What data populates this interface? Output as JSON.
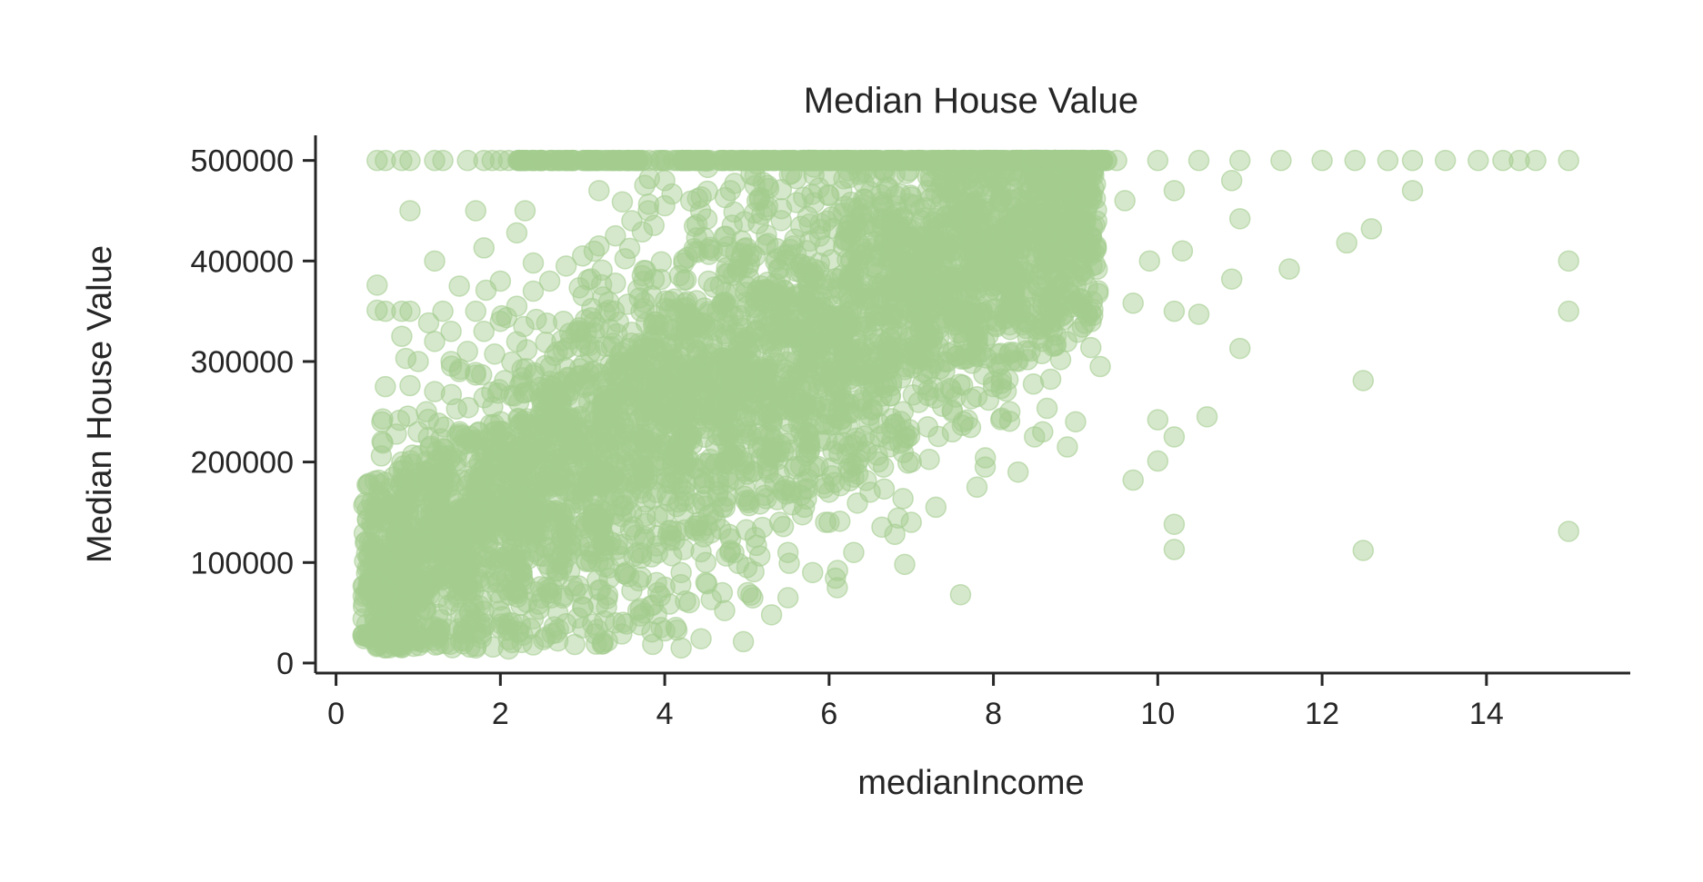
{
  "chart_data": {
    "type": "scatter",
    "title": "Median House Value",
    "xlabel": "medianIncome",
    "ylabel": "Median House Value",
    "xlim": [
      -0.25,
      15.75
    ],
    "ylim": [
      -10000,
      525000
    ],
    "xticks": [
      0,
      2,
      4,
      6,
      8,
      10,
      12,
      14
    ],
    "yticks": [
      0,
      100000,
      200000,
      300000,
      400000,
      500000
    ],
    "xtick_labels": [
      "0",
      "2",
      "4",
      "6",
      "8",
      "10",
      "12",
      "14"
    ],
    "ytick_labels": [
      "0",
      "100000",
      "200000",
      "300000",
      "400000",
      "500000"
    ],
    "grid": false,
    "point_color": "#a3cd8f",
    "point_alpha": 0.45,
    "series": [
      {
        "points": [
          [
            0.5,
            500001
          ],
          [
            0.6,
            500001
          ],
          [
            0.8,
            500001
          ],
          [
            0.9,
            500001
          ],
          [
            1.2,
            500001
          ],
          [
            1.3,
            500001
          ],
          [
            1.6,
            500001
          ],
          [
            1.8,
            500001
          ],
          [
            1.9,
            500001
          ],
          [
            2.0,
            500001
          ],
          [
            2.1,
            500001
          ],
          [
            2.3,
            500001
          ],
          [
            2.5,
            500001
          ],
          [
            2.8,
            500001
          ],
          [
            3.1,
            500001
          ],
          [
            3.5,
            500001
          ],
          [
            3.9,
            500001
          ],
          [
            4.3,
            500001
          ],
          [
            4.8,
            500001
          ],
          [
            5.2,
            500001
          ],
          [
            5.7,
            500001
          ],
          [
            6.1,
            500001
          ],
          [
            6.6,
            500001
          ],
          [
            7.0,
            500001
          ],
          [
            7.5,
            500001
          ],
          [
            8.0,
            500001
          ],
          [
            8.5,
            500001
          ],
          [
            9.0,
            500001
          ],
          [
            9.5,
            500001
          ],
          [
            10.0,
            500001
          ],
          [
            10.5,
            500001
          ],
          [
            11.0,
            500001
          ],
          [
            11.5,
            500001
          ],
          [
            12.0,
            500001
          ],
          [
            12.4,
            500001
          ],
          [
            12.8,
            500001
          ],
          [
            13.1,
            500001
          ],
          [
            13.5,
            500001
          ],
          [
            13.9,
            500001
          ],
          [
            14.2,
            500001
          ],
          [
            14.4,
            500001
          ],
          [
            14.6,
            500001
          ],
          [
            15.0,
            500001
          ],
          [
            0.9,
            450000
          ],
          [
            1.7,
            450000
          ],
          [
            2.3,
            450000
          ],
          [
            3.2,
            470000
          ],
          [
            4.0,
            480000
          ],
          [
            5.1,
            475000
          ],
          [
            6.0,
            465000
          ],
          [
            7.2,
            470000
          ],
          [
            8.1,
            460000
          ],
          [
            8.7,
            455000
          ],
          [
            9.2,
            465000
          ],
          [
            9.6,
            460000
          ],
          [
            10.2,
            470000
          ],
          [
            10.9,
            480000
          ],
          [
            11.0,
            442000
          ],
          [
            13.1,
            470000
          ],
          [
            12.6,
            432000
          ],
          [
            12.3,
            418000
          ],
          [
            11.6,
            392000
          ],
          [
            10.9,
            382000
          ],
          [
            10.3,
            410000
          ],
          [
            9.9,
            400000
          ],
          [
            15.0,
            400000
          ],
          [
            15.0,
            350000
          ],
          [
            10.2,
            350000
          ],
          [
            10.5,
            347000
          ],
          [
            11.0,
            313000
          ],
          [
            9.7,
            358000
          ],
          [
            9.3,
            295000
          ],
          [
            12.5,
            281000
          ],
          [
            10.6,
            245000
          ],
          [
            10.0,
            242000
          ],
          [
            10.2,
            225000
          ],
          [
            10.0,
            201000
          ],
          [
            9.7,
            182000
          ],
          [
            10.2,
            138000
          ],
          [
            10.2,
            113000
          ],
          [
            12.5,
            112000
          ],
          [
            15.0,
            131000
          ],
          [
            0.5,
            376000
          ],
          [
            0.5,
            351000
          ],
          [
            0.6,
            350000
          ],
          [
            0.8,
            350000
          ],
          [
            0.9,
            350000
          ],
          [
            1.2,
            400000
          ],
          [
            1.3,
            350000
          ],
          [
            1.5,
            375000
          ],
          [
            1.7,
            350000
          ],
          [
            1.8,
            413000
          ],
          [
            2.0,
            380000
          ],
          [
            2.2,
            428000
          ],
          [
            2.4,
            398000
          ],
          [
            0.6,
            275000
          ],
          [
            0.9,
            276000
          ],
          [
            1.0,
            300000
          ],
          [
            1.2,
            320000
          ],
          [
            1.4,
            330000
          ],
          [
            0.8,
            325000
          ],
          [
            1.5,
            290000
          ],
          [
            0.5,
            162000
          ],
          [
            0.5,
            100000
          ],
          [
            0.5,
            60000
          ],
          [
            0.6,
            15000
          ],
          [
            0.7,
            45000
          ],
          [
            0.9,
            30000
          ],
          [
            1.0,
            22000
          ],
          [
            1.2,
            28000
          ],
          [
            1.7,
            15000
          ],
          [
            2.1,
            14000
          ],
          [
            2.4,
            18000
          ],
          [
            2.7,
            22000
          ],
          [
            3.0,
            35000
          ],
          [
            3.4,
            40000
          ],
          [
            3.7,
            38000
          ],
          [
            4.0,
            32000
          ],
          [
            4.2,
            15000
          ],
          [
            4.3,
            60000
          ],
          [
            4.7,
            70000
          ],
          [
            5.3,
            48000
          ],
          [
            5.5,
            65000
          ],
          [
            5.8,
            90000
          ],
          [
            6.1,
            75000
          ],
          [
            6.3,
            110000
          ],
          [
            6.8,
            128000
          ],
          [
            7.0,
            140000
          ],
          [
            7.3,
            155000
          ],
          [
            7.6,
            68000
          ],
          [
            7.8,
            175000
          ],
          [
            7.9,
            195000
          ],
          [
            8.3,
            190000
          ],
          [
            8.6,
            230000
          ],
          [
            8.9,
            215000
          ],
          [
            9.0,
            240000
          ],
          [
            8.5,
            225000
          ],
          [
            8.2,
            250000
          ],
          [
            8.0,
            275000
          ],
          [
            7.5,
            230000
          ],
          [
            7.0,
            200000
          ],
          [
            6.5,
            170000
          ],
          [
            6.0,
            140000
          ],
          [
            5.5,
            110000
          ],
          [
            5.0,
            95000
          ],
          [
            4.5,
            80000
          ],
          [
            0.7,
            185000
          ],
          [
            0.8,
            200000
          ],
          [
            1.0,
            230000
          ],
          [
            1.1,
            250000
          ],
          [
            1.2,
            270000
          ],
          [
            1.4,
            300000
          ],
          [
            1.6,
            310000
          ],
          [
            1.8,
            330000
          ],
          [
            2.0,
            340000
          ],
          [
            2.2,
            355000
          ],
          [
            2.4,
            370000
          ],
          [
            2.6,
            380000
          ],
          [
            2.8,
            395000
          ],
          [
            3.0,
            405000
          ],
          [
            3.2,
            415000
          ],
          [
            3.4,
            425000
          ],
          [
            3.6,
            440000
          ],
          [
            3.8,
            450000
          ],
          [
            4.0,
            455000
          ],
          [
            4.4,
            462000
          ],
          [
            4.8,
            470000
          ],
          [
            5.2,
            478000
          ],
          [
            5.6,
            482000
          ],
          [
            6.0,
            485000
          ],
          [
            6.4,
            488000
          ],
          [
            6.8,
            486000
          ],
          [
            7.2,
            484000
          ],
          [
            7.6,
            478000
          ],
          [
            8.0,
            470000
          ],
          [
            8.4,
            455000
          ],
          [
            8.8,
            440000
          ],
          [
            9.0,
            420000
          ],
          [
            9.2,
            395000
          ],
          [
            8.9,
            370000
          ],
          [
            8.7,
            345000
          ],
          [
            8.6,
            320000
          ],
          [
            8.3,
            300000
          ],
          [
            8.0,
            280000
          ],
          [
            7.8,
            265000
          ],
          [
            7.5,
            250000
          ],
          [
            7.2,
            235000
          ],
          [
            6.9,
            220000
          ],
          [
            6.6,
            200000
          ],
          [
            6.3,
            185000
          ],
          [
            6.0,
            170000
          ],
          [
            5.7,
            155000
          ],
          [
            5.4,
            140000
          ],
          [
            5.1,
            125000
          ],
          [
            4.8,
            112000
          ],
          [
            4.5,
            100000
          ],
          [
            4.2,
            90000
          ],
          [
            3.9,
            80000
          ],
          [
            3.6,
            72000
          ],
          [
            3.3,
            64000
          ],
          [
            3.0,
            56000
          ],
          [
            2.7,
            50000
          ],
          [
            2.4,
            44000
          ],
          [
            2.1,
            40000
          ],
          [
            1.8,
            36000
          ],
          [
            1.5,
            34000
          ],
          [
            1.2,
            36000
          ],
          [
            0.9,
            45000
          ],
          [
            0.6,
            70000
          ],
          [
            0.55,
            110000
          ],
          [
            0.6,
            140000
          ]
        ]
      }
    ],
    "density_cloud": {
      "center_band": [
        [
          0.6,
          90000,
          60000
        ],
        [
          1.0,
          110000,
          60000
        ],
        [
          1.5,
          130000,
          65000
        ],
        [
          2.0,
          150000,
          70000
        ],
        [
          2.5,
          175000,
          75000
        ],
        [
          3.0,
          200000,
          80000
        ],
        [
          3.5,
          225000,
          85000
        ],
        [
          4.0,
          250000,
          90000
        ],
        [
          4.5,
          270000,
          92000
        ],
        [
          5.0,
          290000,
          92000
        ],
        [
          5.5,
          310000,
          90000
        ],
        [
          6.0,
          330000,
          88000
        ],
        [
          6.5,
          350000,
          85000
        ],
        [
          7.0,
          370000,
          80000
        ],
        [
          7.5,
          390000,
          75000
        ],
        [
          8.0,
          410000,
          70000
        ],
        [
          8.5,
          430000,
          65000
        ],
        [
          9.0,
          440000,
          55000
        ]
      ]
    }
  }
}
